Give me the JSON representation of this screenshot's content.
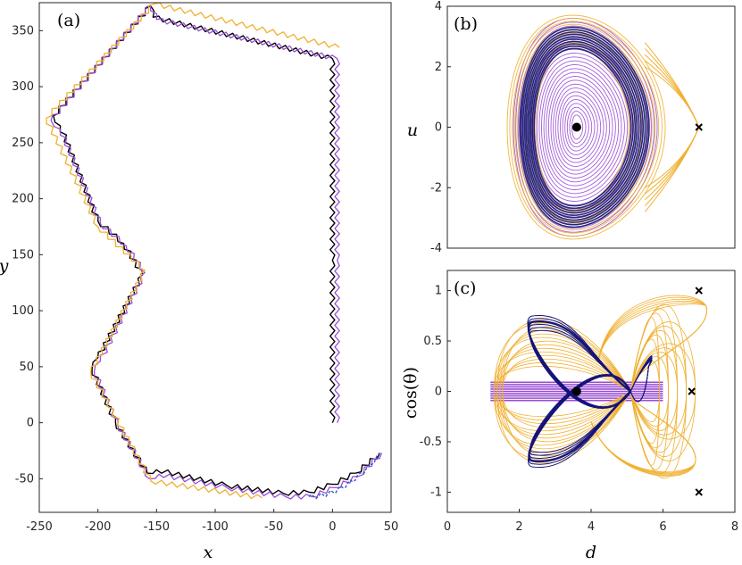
{
  "colors": {
    "black": "#000000",
    "purple": "#9a4ed6",
    "orange": "#f0b030",
    "navy": "#14147a",
    "blue": "#2a56c8"
  },
  "chart_data": [
    {
      "panel": "a",
      "type": "line",
      "title": "(a)",
      "xlabel": "x",
      "ylabel": "y",
      "xlim": [
        -250,
        50
      ],
      "ylim": [
        -80,
        375
      ],
      "xticks": [
        -250,
        -200,
        -150,
        -100,
        -50,
        0,
        50
      ],
      "yticks": [
        -50,
        0,
        50,
        100,
        150,
        200,
        250,
        300,
        350
      ],
      "xtick_labels": [
        "-250",
        "-200",
        "-150",
        "-100",
        "-50",
        "0",
        "50"
      ],
      "ytick_labels": [
        "-50",
        "0",
        "50",
        "100",
        "150",
        "200",
        "250",
        "300",
        "350"
      ],
      "series": [
        {
          "name": "black",
          "color": "black",
          "zigzag": true,
          "points": [
            [
              0,
              0
            ],
            [
              0,
              145
            ],
            [
              0,
              325
            ],
            [
              -153,
              362
            ],
            [
              -155,
              372
            ],
            [
              -238,
              274
            ],
            [
              -232,
              265
            ],
            [
              -200,
              180
            ],
            [
              -178,
              160
            ],
            [
              -162,
              132
            ],
            [
              -200,
              58
            ],
            [
              -205,
              48
            ],
            [
              -185,
              0
            ],
            [
              -158,
              -45
            ],
            [
              -150,
              -42
            ],
            [
              -90,
              -56
            ],
            [
              -42,
              -63
            ],
            [
              -20,
              -62
            ],
            [
              0,
              -55
            ],
            [
              20,
              -45
            ],
            [
              40,
              -28
            ]
          ]
        },
        {
          "name": "purple",
          "color": "purple",
          "zigzag": true,
          "points": [
            [
              4,
              0
            ],
            [
              4,
              145
            ],
            [
              4,
              325
            ],
            [
              -150,
              360
            ],
            [
              -155,
              373
            ],
            [
              -240,
              270
            ],
            [
              -232,
              262
            ],
            [
              -198,
              178
            ],
            [
              -176,
              158
            ],
            [
              -160,
              134
            ],
            [
              -198,
              55
            ],
            [
              -203,
              46
            ],
            [
              -183,
              -2
            ],
            [
              -156,
              -50
            ],
            [
              -148,
              -46
            ],
            [
              -90,
              -58
            ],
            [
              -40,
              -66
            ],
            [
              -18,
              -66
            ],
            [
              2,
              -58
            ],
            [
              22,
              -48
            ],
            [
              42,
              -27
            ]
          ]
        },
        {
          "name": "orange",
          "color": "orange",
          "zigzag": true,
          "points": [
            [
              6,
              335
            ],
            [
              -152,
              374
            ],
            [
              -244,
              272
            ],
            [
              -200,
              175
            ],
            [
              -160,
              136
            ],
            [
              -206,
              45
            ],
            [
              -155,
              -52
            ],
            [
              -60,
              -67
            ]
          ]
        }
      ]
    },
    {
      "panel": "b",
      "type": "line",
      "title": "(b)",
      "xlabel": "",
      "ylabel": "u",
      "xlim": [
        0,
        8
      ],
      "ylim": [
        -4,
        4
      ],
      "yticks": [
        -4,
        -2,
        0,
        2,
        4
      ],
      "ytick_labels": [
        "-4",
        "-2",
        "0",
        "2",
        "4"
      ],
      "center": [
        3.6,
        0
      ],
      "fixed_points": {
        "dot": [
          3.6,
          0
        ],
        "cross": [
          7.0,
          0
        ]
      },
      "orbits": [
        {
          "color": "purple",
          "rx_range": [
            0.15,
            2.0
          ],
          "ry_range": [
            0.4,
            3.6
          ],
          "count": 26
        },
        {
          "color": "orange",
          "rx_range": [
            1.3,
            2.2
          ],
          "ry_range": [
            2.6,
            3.7
          ],
          "count": 12
        },
        {
          "color": "navy",
          "rx_range": [
            1.35,
            1.8
          ],
          "ry_range": [
            2.6,
            3.3
          ],
          "count": 10
        }
      ]
    },
    {
      "panel": "c",
      "type": "line",
      "title": "(c)",
      "xlabel": "d",
      "ylabel": "cos(θ)",
      "xlim": [
        0,
        8
      ],
      "ylim": [
        -1.2,
        1.2
      ],
      "xticks": [
        0,
        2,
        4,
        6,
        8
      ],
      "xtick_labels": [
        "0",
        "2",
        "4",
        "6",
        "8"
      ],
      "yticks": [
        -1,
        -0.5,
        0,
        0.5,
        1
      ],
      "ytick_labels": [
        "-1",
        "-0.5",
        "0",
        "0.5",
        "1"
      ],
      "fixed_points": {
        "dot": [
          3.6,
          0
        ],
        "crosses": [
          [
            7.0,
            1.0
          ],
          [
            6.8,
            0
          ],
          [
            7.0,
            -1.0
          ]
        ]
      },
      "band_color": "purple",
      "band_range": [
        1.2,
        6.0
      ],
      "crossing_point": [
        5.1,
        0
      ]
    }
  ]
}
